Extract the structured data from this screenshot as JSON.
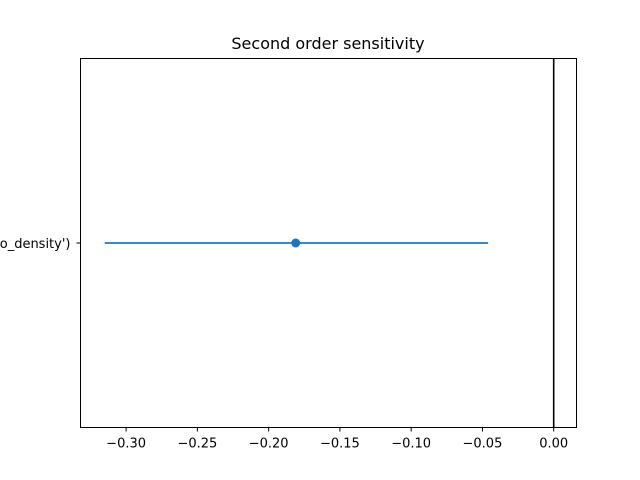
{
  "chart_data": {
    "type": "scatter",
    "title": "Second order sensitivity",
    "xlabel": "",
    "ylabel": "",
    "xlim": [
      -0.332,
      0.016
    ],
    "x_ticks": [
      -0.3,
      -0.25,
      -0.2,
      -0.15,
      -0.1,
      -0.05,
      0.0
    ],
    "x_tick_labels": [
      "−0.30",
      "−0.25",
      "−0.20",
      "−0.15",
      "−0.10",
      "−0.05",
      "0.00"
    ],
    "categories": [
      "o_density')"
    ],
    "points": [
      {
        "category": "o_density')",
        "value": -0.181,
        "ci_low": -0.315,
        "ci_high": -0.046
      }
    ],
    "reference_line": 0.0,
    "grid": false,
    "colors": {
      "series": "#1f77b4",
      "reference": "#000000"
    }
  }
}
